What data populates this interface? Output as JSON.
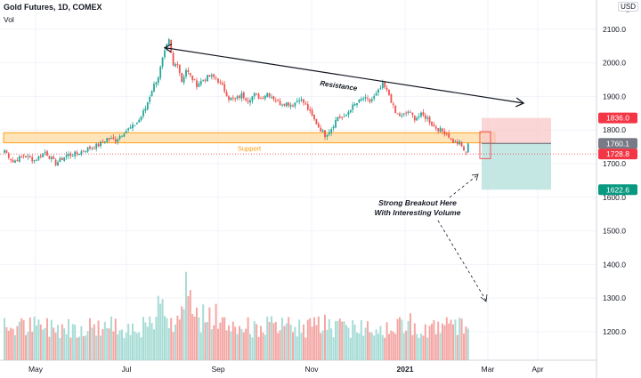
{
  "header": {
    "title": "Gold Futures, 1D, COMEX",
    "volume_label": "Vol",
    "currency": "USD"
  },
  "colors": {
    "up": "#26a69a",
    "down": "#ef5350",
    "vol_up": "#a8dcd6",
    "vol_down": "#f4a7a4",
    "grid": "#f0f3fa",
    "support_fill": "#ffe0b2",
    "support_line": "#ff9800",
    "resistance": "#131722",
    "stop_zone": "#f8c8c8",
    "target_zone": "#b2dfdb",
    "target_label": "#089981",
    "stop_label": "#f23645",
    "current_label": "#787b86"
  },
  "chart_data": {
    "type": "candlestick",
    "x_axis": {
      "tick_labels": [
        "May",
        "Jul",
        "Sep",
        "Nov",
        "2021",
        "Mar",
        "Apr"
      ]
    },
    "y_axis": {
      "ticks": [
        1200,
        1300,
        1400,
        1500,
        1600,
        1700,
        1800,
        1900,
        2000,
        2100
      ],
      "range": [
        1170,
        2165
      ],
      "scale": "linear"
    },
    "price_series": [
      [
        1,
        1740
      ],
      [
        5,
        1705
      ],
      [
        10,
        1725
      ],
      [
        15,
        1710
      ],
      [
        20,
        1735
      ],
      [
        25,
        1700
      ],
      [
        30,
        1725
      ],
      [
        35,
        1730
      ],
      [
        40,
        1745
      ],
      [
        45,
        1755
      ],
      [
        49,
        1775
      ],
      [
        53,
        1770
      ],
      [
        57,
        1795
      ],
      [
        61,
        1810
      ],
      [
        64,
        1830
      ],
      [
        67,
        1865
      ],
      [
        70,
        1920
      ],
      [
        73,
        1960
      ],
      [
        75,
        2010
      ],
      [
        77,
        2050
      ],
      [
        78,
        2065
      ],
      [
        80,
        1990
      ],
      [
        82,
        2000
      ],
      [
        84,
        1945
      ],
      [
        86,
        1980
      ],
      [
        88,
        1960
      ],
      [
        91,
        1935
      ],
      [
        94,
        1950
      ],
      [
        97,
        1960
      ],
      [
        100,
        1955
      ],
      [
        103,
        1930
      ],
      [
        106,
        1895
      ],
      [
        109,
        1890
      ],
      [
        112,
        1905
      ],
      [
        115,
        1890
      ],
      [
        118,
        1905
      ],
      [
        121,
        1895
      ],
      [
        124,
        1910
      ],
      [
        127,
        1895
      ],
      [
        130,
        1880
      ],
      [
        133,
        1880
      ],
      [
        136,
        1875
      ],
      [
        139,
        1895
      ],
      [
        142,
        1875
      ],
      [
        145,
        1840
      ],
      [
        148,
        1810
      ],
      [
        151,
        1785
      ],
      [
        154,
        1805
      ],
      [
        157,
        1840
      ],
      [
        160,
        1835
      ],
      [
        163,
        1865
      ],
      [
        166,
        1880
      ],
      [
        169,
        1895
      ],
      [
        172,
        1885
      ],
      [
        175,
        1905
      ],
      [
        178,
        1935
      ],
      [
        181,
        1905
      ],
      [
        184,
        1850
      ],
      [
        187,
        1840
      ],
      [
        190,
        1855
      ],
      [
        193,
        1835
      ],
      [
        196,
        1845
      ],
      [
        199,
        1835
      ],
      [
        202,
        1810
      ],
      [
        205,
        1800
      ],
      [
        208,
        1790
      ],
      [
        211,
        1765
      ],
      [
        214,
        1760
      ],
      [
        217,
        1730
      ],
      [
        218,
        1760
      ]
    ],
    "support_zone": {
      "label": "Support",
      "low": 1762,
      "high": 1792
    },
    "resistance_line": {
      "label": "Resistance",
      "start": [
        75,
        2045
      ],
      "end": [
        243,
        1880
      ]
    },
    "trade_setup": {
      "entry": 1760.1,
      "stop": 1836.0,
      "target": 1622.6,
      "current": 1728.8
    },
    "price_labels": [
      "1836.0",
      "1760.1",
      "1728.8",
      "1622.6"
    ],
    "annotations": [
      "Strong Breakout Here",
      "With Interesting Volume"
    ]
  }
}
